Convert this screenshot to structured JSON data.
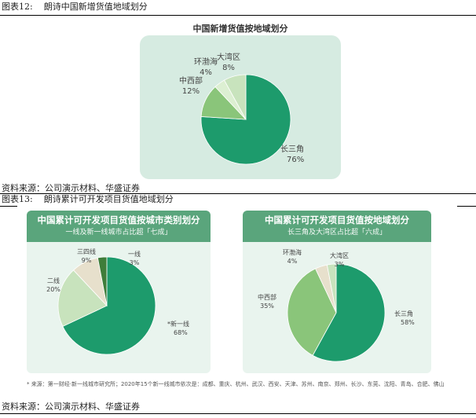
{
  "captions": {
    "fig12_label": "图表12:",
    "fig12_title": "朗诗中国新增货值地域划分",
    "fig13_label": "图表13:",
    "fig13_title": "朗诗累计可开发项目货值地域划分",
    "source1": "资料来源：公司演示材料、华盛证券",
    "source2": "资料来源：公司演示材料、华盛证券"
  },
  "footnote": "* 来源：第一财经·新一线城市研究所；2020年15个新一线城市依次是：成都、重庆、杭州、武汉、西安、天津、苏州、南京、郑州、长沙、东莞、沈阳、青岛、合肥、佛山",
  "colors": {
    "dark_green": "#1d9b6c",
    "mid_green": "#8ac57a",
    "light_green": "#c8e3bd",
    "pale_green": "#dcefd2",
    "olive": "#3f7d3a",
    "beige": "#e7e0cc",
    "header_green": "#5aa57c"
  },
  "chart_data": [
    {
      "type": "pie",
      "title": "中国新增货值按地域划分",
      "categories": [
        "长三角",
        "中西部",
        "环渤海",
        "大湾区"
      ],
      "values": [
        76,
        12,
        4,
        8
      ],
      "labels": [
        "76%",
        "12%",
        "4%",
        "8%"
      ]
    },
    {
      "type": "pie",
      "title": "中国累计可开发项目货值按城市类别划分",
      "subtitle": "一线及新一线城市占比超「七成」",
      "categories": [
        "*新一线",
        "二线",
        "三四线",
        "一线"
      ],
      "values": [
        68,
        20,
        9,
        3
      ],
      "labels": [
        "68%",
        "20%",
        "9%",
        "3%"
      ]
    },
    {
      "type": "pie",
      "title": "中国累计可开发项目货值按地域划分",
      "subtitle": "长三角及大湾区占比超「六成」",
      "categories": [
        "长三角",
        "中西部",
        "环渤海",
        "大湾区"
      ],
      "values": [
        58,
        35,
        4,
        3
      ],
      "labels": [
        "58%",
        "35%",
        "4%",
        "3%"
      ]
    }
  ]
}
